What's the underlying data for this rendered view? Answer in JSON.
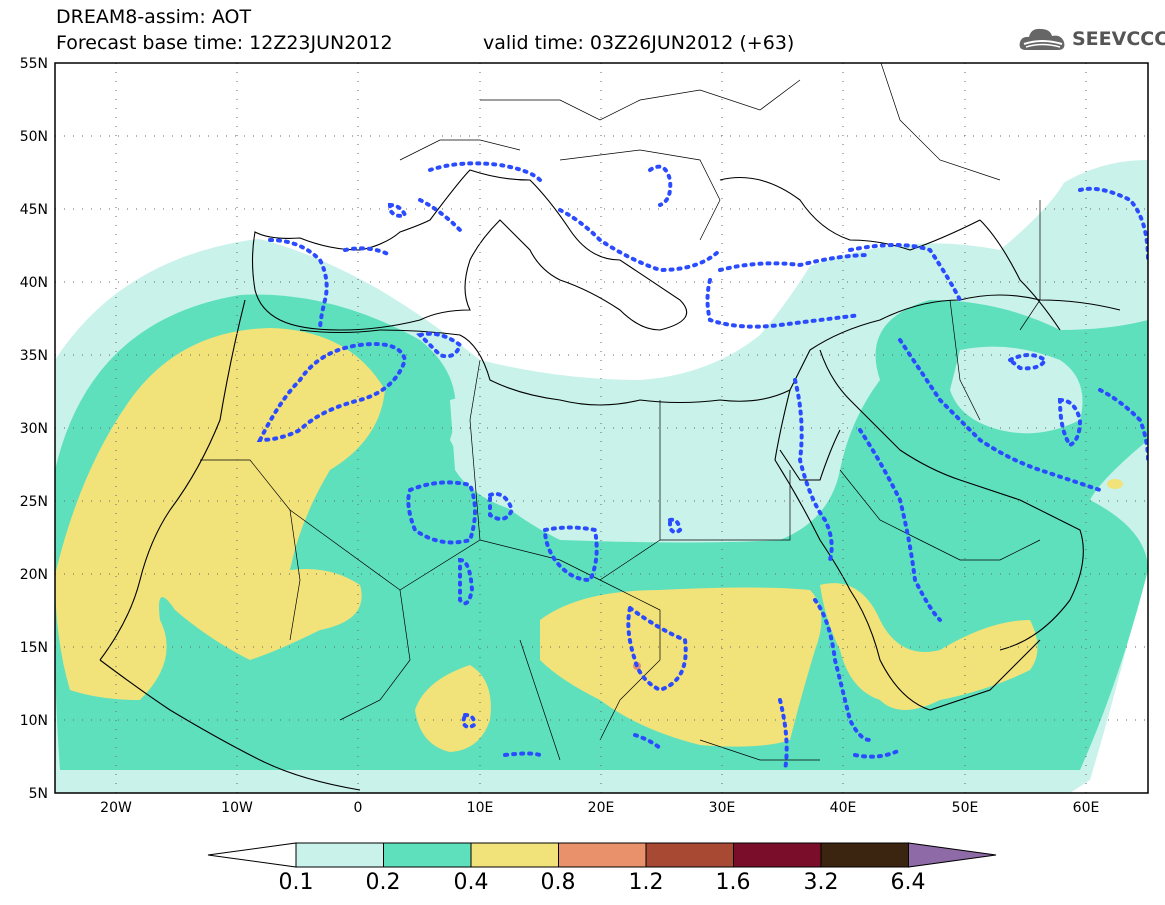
{
  "header": {
    "title_line1": "DREAM8-assim: AOT",
    "base_time": "Forecast base time: 12Z23JUN2012",
    "valid_time": "valid time: 03Z26JUN2012 (+63)",
    "logo_text": "SEEVCCC",
    "logo_icon": "cloud-logo-icon"
  },
  "map": {
    "variable": "AOT",
    "lon_range": [
      -25,
      65
    ],
    "lat_range": [
      5,
      55
    ],
    "lon_ticks": [
      "20W",
      "10W",
      "0",
      "10E",
      "20E",
      "30E",
      "40E",
      "50E",
      "60E"
    ],
    "lat_ticks": [
      "55N",
      "50N",
      "45N",
      "40N",
      "35N",
      "30N",
      "25N",
      "20N",
      "15N",
      "10N",
      "5N"
    ],
    "grid": "dotted",
    "overlay": "blue dotted contours"
  },
  "colorbar": {
    "levels": [
      "0.1",
      "0.2",
      "0.4",
      "0.8",
      "1.2",
      "1.6",
      "3.2",
      "6.4"
    ],
    "colors": [
      "#c8f2ea",
      "#5ee0bd",
      "#f2e27a",
      "#e8916a",
      "#a84a33",
      "#7a0e2a",
      "#3b2410",
      "#8e6aa6"
    ],
    "low_color": "#ffffff",
    "high_color": "#8e6aa6"
  }
}
